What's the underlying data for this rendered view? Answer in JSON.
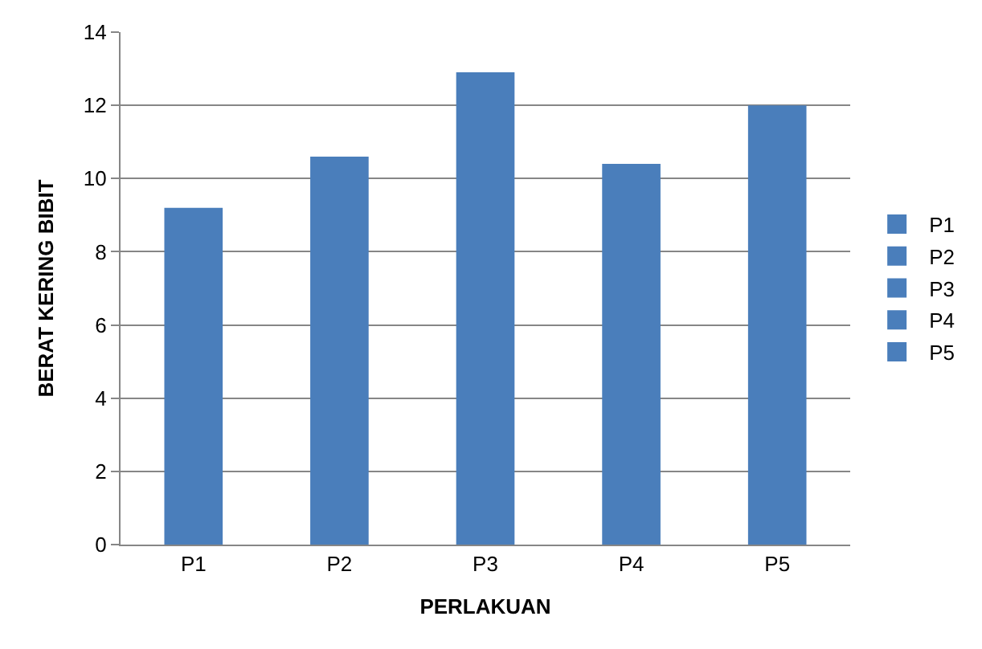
{
  "chart_data": {
    "type": "bar",
    "xlabel": "PERLAKUAN",
    "ylabel": "BERAT KERING BIBIT",
    "categories": [
      "P1",
      "P2",
      "P3",
      "P4",
      "P5"
    ],
    "series": [
      {
        "name": "P1",
        "color": "#4a7ebb",
        "values": [
          9.2,
          null,
          null,
          null,
          null
        ]
      },
      {
        "name": "P2",
        "color": "#4a7ebb",
        "values": [
          null,
          10.6,
          null,
          null,
          null
        ]
      },
      {
        "name": "P3",
        "color": "#4a7ebb",
        "values": [
          null,
          null,
          12.9,
          null,
          null
        ]
      },
      {
        "name": "P4",
        "color": "#4a7ebb",
        "values": [
          null,
          null,
          null,
          10.4,
          null
        ]
      },
      {
        "name": "P5",
        "color": "#4a7ebb",
        "values": [
          null,
          null,
          null,
          null,
          12.0
        ]
      }
    ],
    "ylim": [
      0,
      14
    ],
    "yticks": [
      0,
      2,
      4,
      6,
      8,
      10,
      12,
      14
    ],
    "grid": "y",
    "legend": "right"
  }
}
